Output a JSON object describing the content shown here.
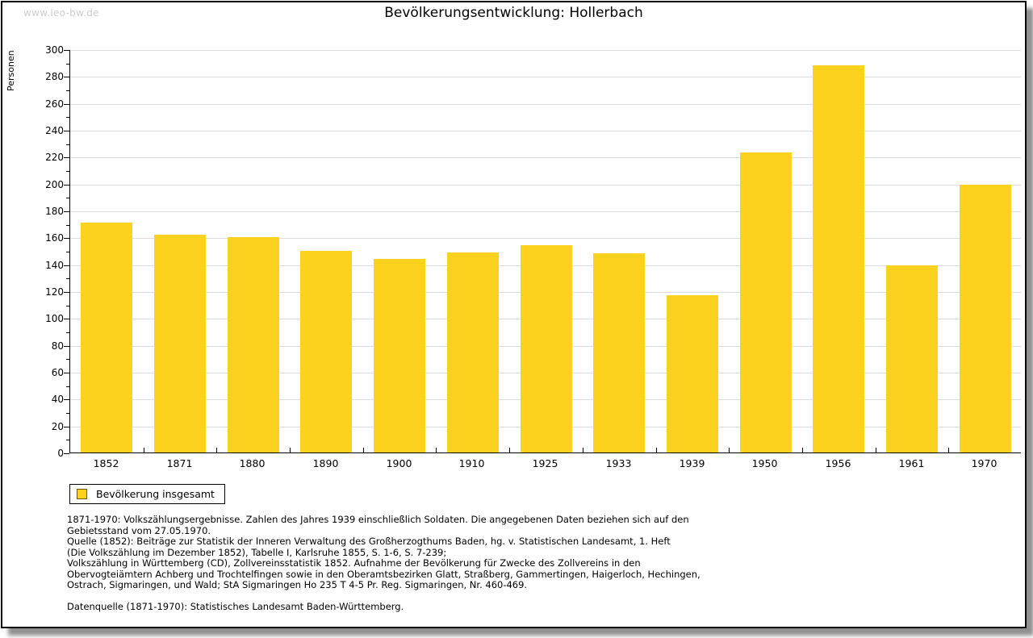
{
  "watermark": "www.leo-bw.de",
  "header": {
    "title": "Bevölkerungsentwicklung: Hollerbach"
  },
  "colors": {
    "bar_fill": "#fcd21e",
    "bar_swatch_border": "#6b5900",
    "gridline": "#dcdcdc",
    "axis": "#000000",
    "watermark": "#cccccc"
  },
  "chart_data": {
    "type": "bar",
    "title": "Bevölkerungsentwicklung: Hollerbach",
    "xlabel": "",
    "ylabel": "Personen",
    "categories": [
      "1852",
      "1871",
      "1880",
      "1890",
      "1900",
      "1910",
      "1925",
      "1933",
      "1939",
      "1950",
      "1956",
      "1961",
      "1970"
    ],
    "values": [
      171,
      162,
      160,
      150,
      144,
      149,
      154,
      148,
      117,
      223,
      288,
      139,
      199
    ],
    "series_name": "Bevölkerung insgesamt",
    "ylim": [
      0,
      300
    ],
    "ytick_step": 20,
    "yminor_step": 10,
    "grid": true,
    "legend_position": "bottom-left",
    "bar_color": "#fcd21e"
  },
  "legend": {
    "label": "Bevölkerung insgesamt"
  },
  "footer": {
    "lines": [
      "1871-1970: Volkszählungsergebnisse. Zahlen des Jahres 1939 einschließlich Soldaten. Die angegebenen Daten beziehen sich auf den",
      "Gebietsstand vom 27.05.1970.",
      "Quelle (1852): Beiträge zur Statistik der Inneren Verwaltung des Großherzogthums Baden, hg. v. Statistischen Landesamt, 1. Heft",
      "(Die Volkszählung im Dezember 1852), Tabelle I, Karlsruhe 1855, S. 1-6, S. 7-239;",
      "Volkszählung in Württemberg (CD), Zollvereinsstatistik 1852. Aufnahme der Bevölkerung für Zwecke des Zollvereins in den",
      "Obervogteiämtern Achberg und Trochtelfingen sowie in den Oberamtsbezirken Glatt, Straßberg, Gammertingen, Haigerloch, Hechingen,",
      "Ostrach, Sigmaringen, und Wald; StA Sigmaringen Ho 235 T 4-5 Pr. Reg. Sigmaringen, Nr. 460-469.",
      "",
      "Datenquelle (1871-1970): Statistisches Landesamt Baden-Württemberg."
    ]
  }
}
